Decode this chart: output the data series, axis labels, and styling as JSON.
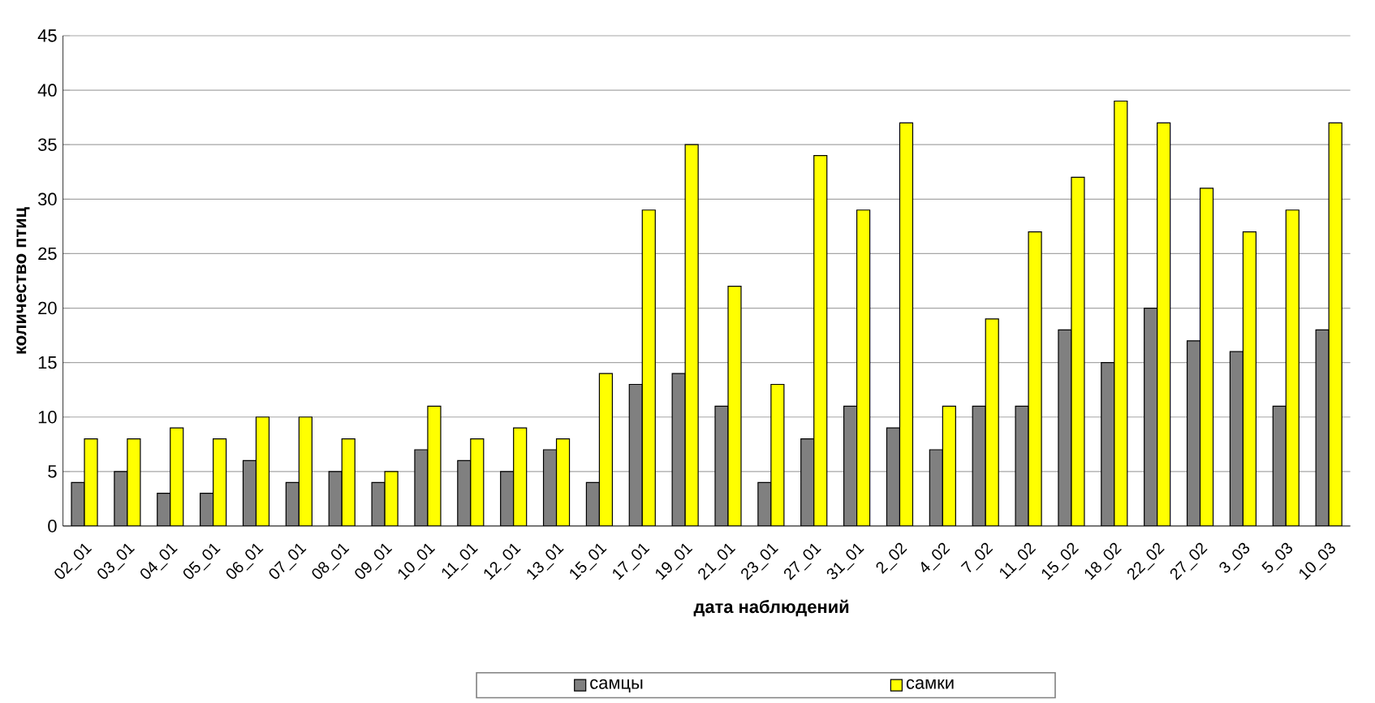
{
  "chart_data": {
    "type": "bar",
    "xlabel": "дата наблюдений",
    "ylabel": "количество птиц",
    "categories": [
      "02_01",
      "03_01",
      "04_01",
      "05_01",
      "06_01",
      "07_01",
      "08_01",
      "09_01",
      "10_01",
      "11_01",
      "12_01",
      "13_01",
      "15_01",
      "17_01",
      "19_01",
      "21_01",
      "23_01",
      "27_01",
      "31_01",
      "2_02",
      "4_02",
      "7_02",
      "11_02",
      "15_02",
      "18_02",
      "22_02",
      "27_02",
      "3_03",
      "5_03",
      "10_03"
    ],
    "series": [
      {
        "name": "самцы",
        "color": "#808080",
        "values": [
          4,
          5,
          3,
          3,
          6,
          4,
          5,
          4,
          7,
          6,
          5,
          7,
          4,
          13,
          14,
          11,
          4,
          8,
          11,
          9,
          7,
          11,
          11,
          18,
          15,
          20,
          17,
          16,
          11,
          18
        ]
      },
      {
        "name": "самки",
        "color": "#ffff00",
        "values": [
          8,
          8,
          9,
          8,
          10,
          10,
          8,
          5,
          11,
          8,
          9,
          8,
          14,
          29,
          35,
          22,
          13,
          34,
          29,
          37,
          11,
          19,
          27,
          32,
          39,
          37,
          31,
          27,
          29,
          37
        ]
      }
    ],
    "ylim": [
      0,
      45
    ],
    "yticks": [
      0,
      5,
      10,
      15,
      20,
      25,
      30,
      35,
      40,
      45
    ],
    "grid": "y",
    "legend": "bottom"
  }
}
